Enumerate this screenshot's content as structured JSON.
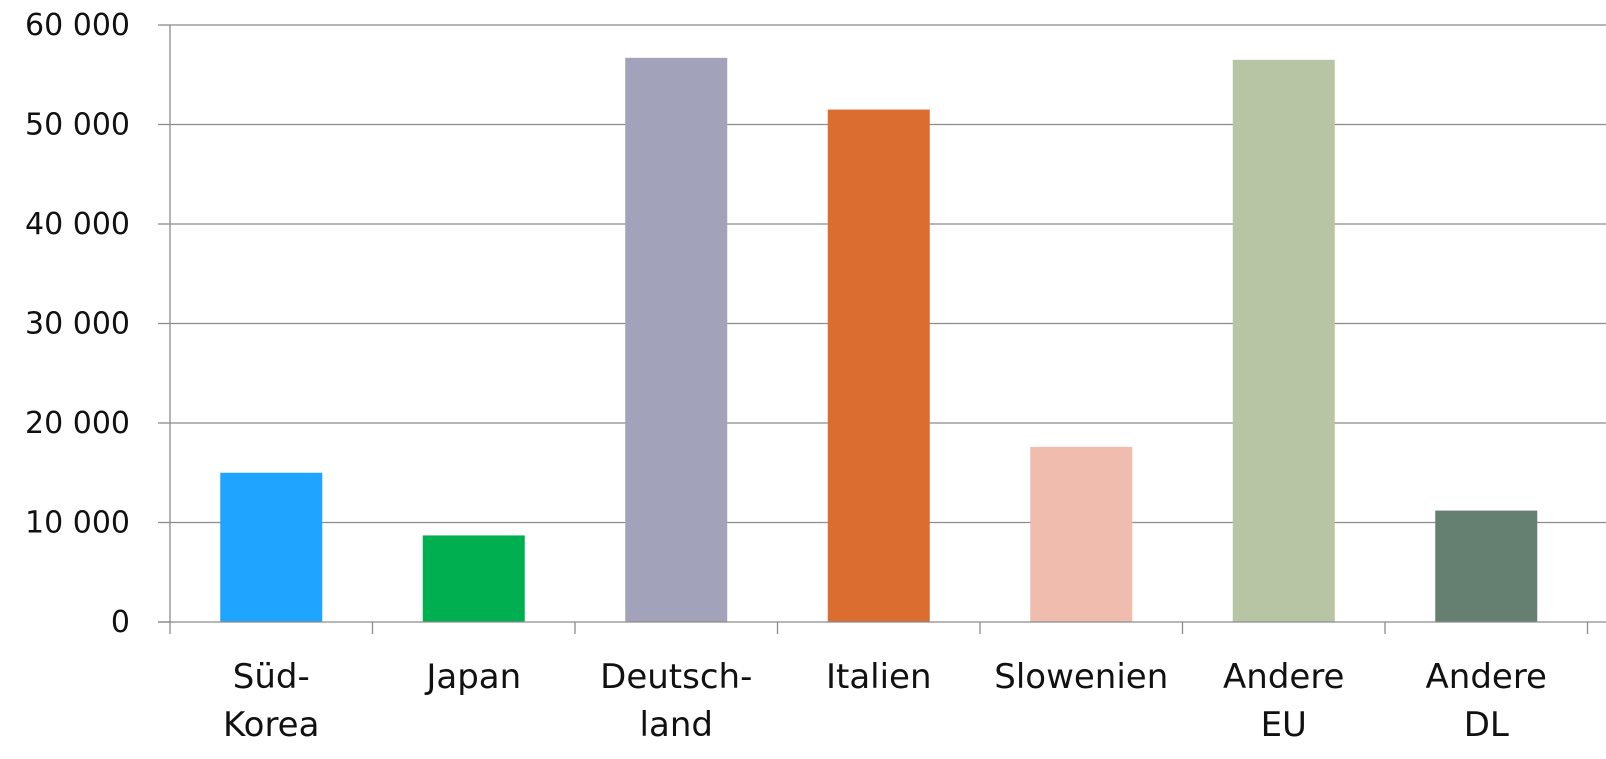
{
  "chart_data": {
    "type": "bar",
    "title": "",
    "xlabel": "",
    "ylabel": "",
    "ylim": [
      0,
      60000
    ],
    "yticks": [
      0,
      10000,
      20000,
      30000,
      40000,
      50000,
      60000
    ],
    "ytick_labels": [
      "0",
      "10 000",
      "20 000",
      "30 000",
      "40 000",
      "50 000",
      "60 000"
    ],
    "grid": true,
    "legend": "none",
    "categories": [
      [
        "Süd-",
        "Korea"
      ],
      [
        "Japan"
      ],
      [
        "Deutsch-",
        "land"
      ],
      [
        "Italien"
      ],
      [
        "Slowenien"
      ],
      [
        "Andere",
        "EU"
      ],
      [
        "Andere",
        "DL"
      ]
    ],
    "values": [
      15000,
      8700,
      56700,
      51500,
      17600,
      56500,
      11200
    ],
    "colors": [
      "#1fa5ff",
      "#00b050",
      "#a2a2ba",
      "#dc6d31",
      "#f0bcae",
      "#b8c5a4",
      "#657f71"
    ],
    "axis_color": "#8c8c8c",
    "grid_color": "#8c8c8c"
  }
}
